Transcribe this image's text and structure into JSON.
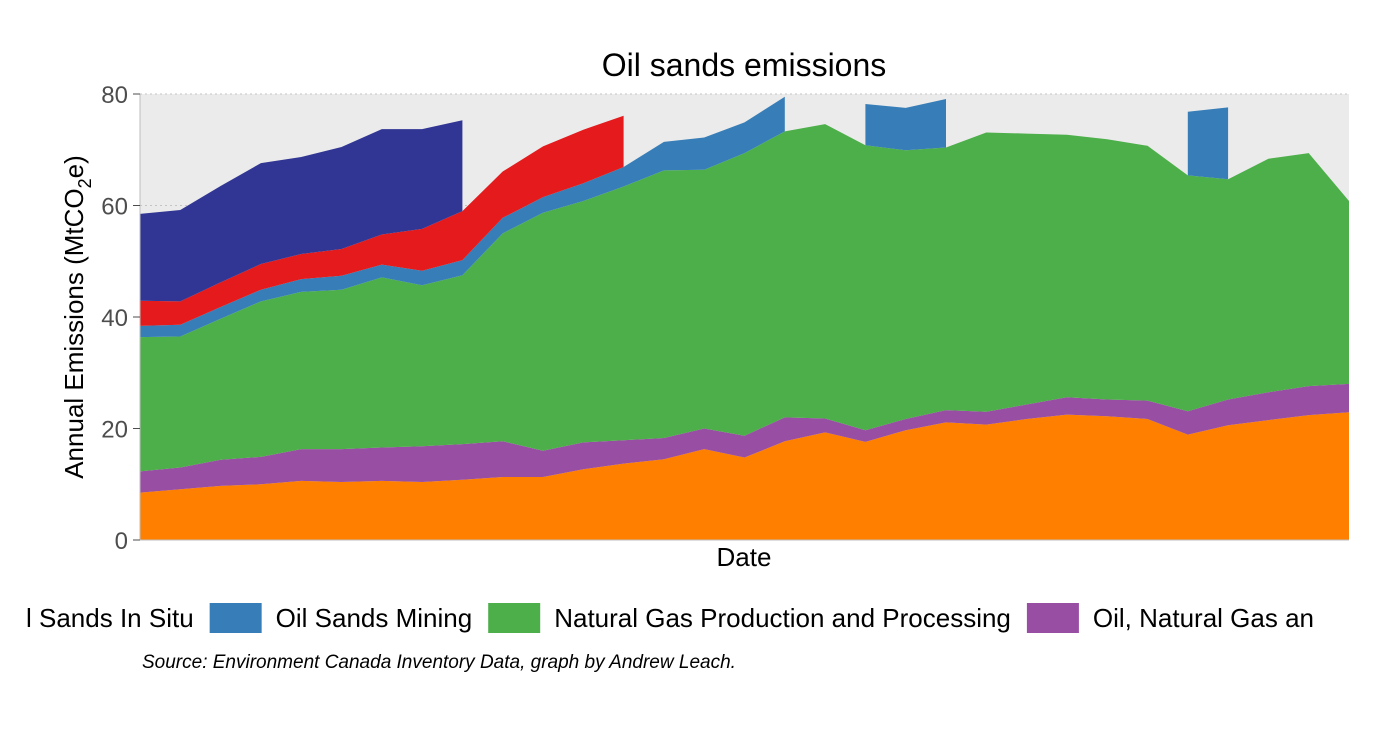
{
  "chart_data": {
    "type": "area",
    "title": "Oil sands emissions",
    "xlabel": "Date",
    "ylabel_main": "Annual Emissions  (MtCO",
    "ylabel_sub": "2",
    "ylabel_end": "e)",
    "ylim": [
      0,
      80
    ],
    "y_ticks": [
      "0",
      "20",
      "40",
      "60",
      "80"
    ],
    "grid": "horizontal dotted",
    "legend_position": "bottom",
    "caption": "Source: Environment Canada Inventory Data, graph by Andrew Leach.",
    "series": [
      {
        "name": "",
        "color": "#ff7f00",
        "values": [
          8.5,
          9.1,
          9.7,
          10.0,
          10.6,
          10.4,
          10.6,
          10.4,
          10.8,
          11.3,
          11.3,
          12.7,
          13.7,
          14.5,
          16.3,
          14.8,
          17.7,
          19.3,
          17.6,
          19.7,
          21.1,
          20.7,
          21.7,
          22.5,
          22.2,
          21.7,
          18.9,
          20.6,
          21.5,
          22.4,
          22.9
        ]
      },
      {
        "name": "Oil, Natural Gas an",
        "color": "#984ea3",
        "values": [
          3.8,
          3.9,
          4.7,
          4.9,
          5.7,
          5.9,
          6.0,
          6.4,
          6.4,
          6.4,
          4.7,
          4.8,
          4.2,
          3.8,
          3.7,
          3.9,
          4.3,
          2.5,
          2.1,
          2.0,
          2.2,
          2.3,
          2.6,
          3.1,
          3.0,
          3.3,
          4.2,
          4.6,
          5.0,
          5.2,
          5.1
        ]
      },
      {
        "name": "Natural Gas Production and Processing",
        "color": "#4daf4a",
        "values": [
          24.1,
          23.5,
          25.3,
          27.9,
          28.2,
          28.6,
          30.5,
          28.9,
          30.3,
          37.3,
          42.7,
          43.3,
          45.5,
          48.0,
          46.4,
          50.7,
          51.3,
          52.8,
          51.1,
          48.2,
          47.1,
          50.1,
          48.6,
          47.1,
          46.7,
          45.7,
          42.3,
          39.5,
          41.9,
          41.8,
          32.8
        ]
      },
      {
        "name": "Oil Sands Mining",
        "color": "#377eb8",
        "values": [
          2.0,
          2.1,
          2.1,
          2.1,
          2.3,
          2.5,
          2.3,
          2.6,
          2.7,
          2.8,
          2.8,
          3.2,
          3.5,
          5.1,
          5.8,
          5.5,
          6.2,
          null,
          7.4,
          7.6,
          8.7,
          null,
          null,
          null,
          null,
          null,
          11.4,
          12.9,
          null,
          null,
          null
        ]
      },
      {
        "name": "",
        "color": "#e41a1c",
        "values": [
          4.5,
          4.2,
          4.4,
          4.6,
          4.5,
          4.8,
          5.4,
          7.5,
          8.8,
          8.3,
          9.1,
          9.6,
          9.2,
          null,
          null,
          null,
          null,
          null,
          null,
          null,
          null,
          null,
          null,
          null,
          null,
          null,
          null,
          null,
          null,
          null,
          null
        ]
      },
      {
        "name": "l Sands In Situ",
        "color": "#313695",
        "values": [
          15.6,
          16.4,
          17.3,
          18.1,
          17.4,
          18.3,
          18.9,
          17.9,
          16.3,
          null,
          null,
          null,
          null,
          null,
          null,
          null,
          null,
          null,
          null,
          null,
          null,
          null,
          null,
          null,
          null,
          null,
          null,
          null,
          null,
          null,
          null
        ]
      }
    ],
    "legend": [
      {
        "label": "l Sands In Situ",
        "color": "#313695",
        "show_swatch": false
      },
      {
        "label": "Oil Sands Mining",
        "color": "#377eb8",
        "show_swatch": true
      },
      {
        "label": "Natural Gas Production and Processing",
        "color": "#4daf4a",
        "show_swatch": true
      },
      {
        "label": "Oil, Natural Gas an",
        "color": "#984ea3",
        "show_swatch": true
      }
    ]
  }
}
